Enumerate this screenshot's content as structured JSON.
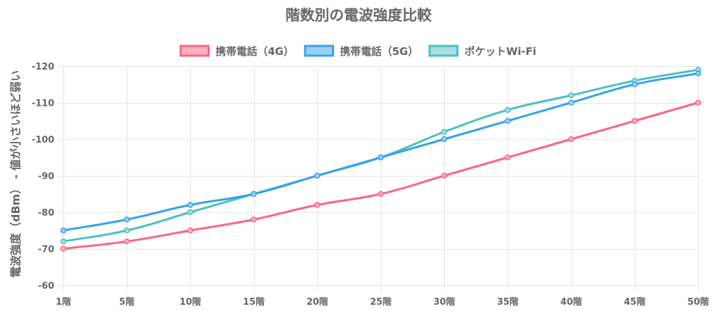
{
  "chart_data": {
    "type": "line",
    "title": "階数別の電波強度比較",
    "xlabel": "",
    "ylabel": "電波強度（dBm） - 値が小さいほど弱い",
    "categories": [
      "1階",
      "5階",
      "10階",
      "15階",
      "20階",
      "25階",
      "30階",
      "35階",
      "40階",
      "45階",
      "50階"
    ],
    "ylim": [
      -120,
      -60
    ],
    "y_axis_reversed": true,
    "yticks": [
      -120,
      -110,
      -100,
      -90,
      -80,
      -70,
      -60
    ],
    "grid": true,
    "legend": "top",
    "series": [
      {
        "name": "携帯電話（4G）",
        "color": "#ff6384",
        "fill": "#ffb1c1",
        "values": [
          -70,
          -72,
          -75,
          -78,
          -82,
          -85,
          -90,
          -95,
          -100,
          -105,
          -110
        ]
      },
      {
        "name": "携帯電話（5G）",
        "color": "#36a2eb",
        "fill": "#9ad0f5",
        "values": [
          -75,
          -78,
          -82,
          -85,
          -90,
          -95,
          -100,
          -105,
          -110,
          -115,
          -118
        ]
      },
      {
        "name": "ポケットWi-Fi",
        "color": "#4bc0c0",
        "fill": "#a5dfdf",
        "values": [
          -72,
          -75,
          -80,
          -85,
          -90,
          -95,
          -102,
          -108,
          -112,
          -116,
          -119
        ]
      }
    ]
  }
}
